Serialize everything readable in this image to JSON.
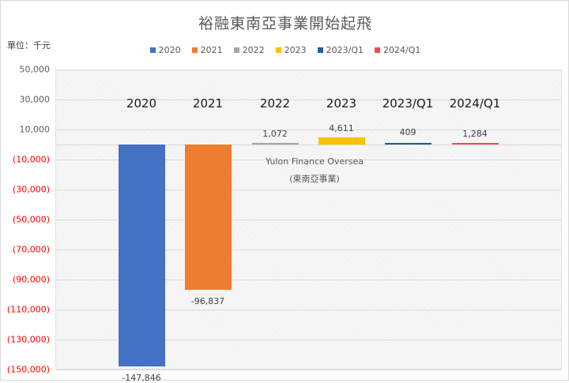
{
  "title": "裕融東南亞事業開始起飛",
  "unit_label": "單位：千元",
  "legend": [
    {
      "label": "2020",
      "color": "#4472c4"
    },
    {
      "label": "2021",
      "color": "#ed7d31"
    },
    {
      "label": "2022",
      "color": "#a5a5a5"
    },
    {
      "label": "2023",
      "color": "#ffc000"
    },
    {
      "label": "2023/Q1",
      "color": "#255e91"
    },
    {
      "label": "2024/Q1",
      "color": "#f04b55"
    }
  ],
  "annotation": {
    "line1": "Yulon Finance Oversea",
    "line2": "(東南亞事業)"
  },
  "value_labels": [
    "-147,846",
    "-96,837",
    "1,072",
    "4,611",
    "409",
    "1,284"
  ],
  "y_tick_labels": [
    "50,000",
    "30,000",
    "10,000",
    "(10,000)",
    "(30,000)",
    "(50,000)",
    "(70,000)",
    "(90,000)",
    "(110,000)",
    "(130,000)",
    "(150,000)"
  ],
  "chart_data": {
    "type": "bar",
    "title": "裕融東南亞事業開始起飛",
    "subtitle": "單位：千元",
    "categories": [
      "2020",
      "2021",
      "2022",
      "2023",
      "2023/Q1",
      "2024/Q1"
    ],
    "values": [
      -147846,
      -96837,
      1072,
      4611,
      409,
      1284
    ],
    "series": [
      {
        "name": "2020",
        "values": [
          -147846
        ],
        "color": "#4472c4"
      },
      {
        "name": "2021",
        "values": [
          -96837
        ],
        "color": "#ed7d31"
      },
      {
        "name": "2022",
        "values": [
          1072
        ],
        "color": "#a5a5a5"
      },
      {
        "name": "2023",
        "values": [
          4611
        ],
        "color": "#ffc000"
      },
      {
        "name": "2023/Q1",
        "values": [
          409
        ],
        "color": "#255e91"
      },
      {
        "name": "2024/Q1",
        "values": [
          1284
        ],
        "color": "#f04b55"
      }
    ],
    "xlabel": "",
    "ylabel": "千元",
    "ylim": [
      -150000,
      50000
    ],
    "y_ticks": [
      50000,
      30000,
      10000,
      -10000,
      -30000,
      -50000,
      -70000,
      -90000,
      -110000,
      -130000,
      -150000
    ],
    "negative_tick_color": "#ff0000",
    "grid": true,
    "legend_position": "top",
    "annotations": [
      "Yulon Finance Oversea",
      "(東南亞事業)"
    ]
  }
}
